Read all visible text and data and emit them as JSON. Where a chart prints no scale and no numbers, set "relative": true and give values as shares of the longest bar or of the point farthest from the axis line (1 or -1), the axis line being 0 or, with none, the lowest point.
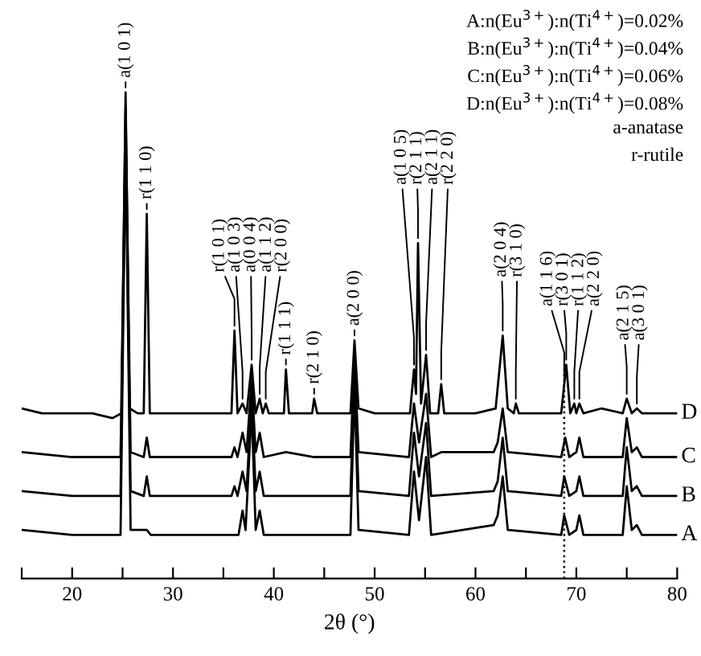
{
  "chart_data": {
    "type": "line",
    "relative": true,
    "xlabel": "2θ (°)",
    "xlim": [
      15,
      80
    ],
    "xticks": [
      {
        "value": 15,
        "label": null
      },
      20,
      {
        "value": 25,
        "label": null
      },
      30,
      {
        "value": 35,
        "label": null
      },
      40,
      {
        "value": 45,
        "label": null
      },
      50,
      {
        "value": 55,
        "label": null
      },
      60,
      {
        "value": 65,
        "label": null
      },
      70,
      {
        "value": 75,
        "label": null
      },
      80
    ],
    "tick_labels": "x",
    "grid": false,
    "legend": false,
    "series": [
      {
        "name": "D",
        "color": "#000000",
        "x": [
          15,
          17,
          20,
          22,
          24,
          24.9,
          25.3,
          25.7,
          26.5,
          27.1,
          27.4,
          27.7,
          30,
          33,
          35.8,
          36.1,
          36.4,
          36.9,
          37.3,
          37.8,
          38.2,
          38.6,
          38.9,
          39.2,
          39.5,
          41.0,
          41.2,
          41.5,
          43.8,
          44.0,
          44.3,
          47.6,
          48.0,
          48.4,
          50,
          53.5,
          53.9,
          54.1,
          54.3,
          54.6,
          55.1,
          55.5,
          56.3,
          56.6,
          56.9,
          60,
          62.0,
          62.7,
          63.2,
          63.8,
          64.0,
          64.3,
          68.5,
          68.8,
          69.0,
          69.4,
          69.8,
          70.0,
          70.3,
          70.7,
          72.5,
          74.6,
          75.0,
          75.5,
          76.0,
          76.5,
          80
        ],
        "values": [
          0.35,
          0.34,
          0.34,
          0.34,
          0.33,
          0.34,
          1.0,
          0.35,
          0.34,
          0.34,
          0.75,
          0.34,
          0.34,
          0.34,
          0.34,
          0.51,
          0.34,
          0.36,
          0.34,
          0.44,
          0.34,
          0.37,
          0.34,
          0.36,
          0.34,
          0.34,
          0.43,
          0.34,
          0.34,
          0.37,
          0.34,
          0.34,
          0.49,
          0.35,
          0.34,
          0.34,
          0.43,
          0.38,
          0.69,
          0.36,
          0.46,
          0.34,
          0.34,
          0.4,
          0.34,
          0.34,
          0.35,
          0.5,
          0.35,
          0.34,
          0.36,
          0.34,
          0.34,
          0.4,
          0.44,
          0.34,
          0.36,
          0.34,
          0.36,
          0.34,
          0.35,
          0.34,
          0.37,
          0.34,
          0.35,
          0.34,
          0.34
        ]
      },
      {
        "name": "C",
        "color": "#000000",
        "x": [
          15,
          20,
          24.8,
          25.3,
          25.8,
          27.1,
          27.4,
          27.7,
          33,
          35.8,
          36.1,
          36.4,
          36.9,
          37.3,
          37.8,
          38.2,
          38.6,
          39.0,
          41.2,
          44,
          47.6,
          48.0,
          48.4,
          53.4,
          53.9,
          54.4,
          55.1,
          55.6,
          56.6,
          61.8,
          62.2,
          62.7,
          63.2,
          68.5,
          68.9,
          69.3,
          70.0,
          70.3,
          70.7,
          74.6,
          75.0,
          75.5,
          76.0,
          76.5,
          80
        ],
        "values": [
          0.26,
          0.25,
          0.25,
          0.97,
          0.26,
          0.25,
          0.29,
          0.25,
          0.25,
          0.25,
          0.27,
          0.25,
          0.3,
          0.26,
          0.41,
          0.26,
          0.3,
          0.25,
          0.26,
          0.25,
          0.25,
          0.46,
          0.26,
          0.25,
          0.36,
          0.28,
          0.38,
          0.25,
          0.26,
          0.26,
          0.28,
          0.35,
          0.26,
          0.25,
          0.29,
          0.25,
          0.26,
          0.29,
          0.25,
          0.25,
          0.33,
          0.26,
          0.27,
          0.25,
          0.25
        ]
      },
      {
        "name": "B",
        "color": "#000000",
        "x": [
          15,
          20,
          24.8,
          25.3,
          25.8,
          27.1,
          27.4,
          27.7,
          35.8,
          36.1,
          36.4,
          36.9,
          37.3,
          37.8,
          38.2,
          38.6,
          39.0,
          47.6,
          48.0,
          48.4,
          53.4,
          53.9,
          54.4,
          55.1,
          55.6,
          61.8,
          62.2,
          62.7,
          63.2,
          68.5,
          68.8,
          69.3,
          70.0,
          70.3,
          70.7,
          74.6,
          75.0,
          75.5,
          76.0,
          76.5,
          80
        ],
        "values": [
          0.18,
          0.17,
          0.17,
          0.94,
          0.18,
          0.17,
          0.21,
          0.17,
          0.17,
          0.19,
          0.17,
          0.22,
          0.18,
          0.38,
          0.18,
          0.22,
          0.17,
          0.17,
          0.43,
          0.18,
          0.17,
          0.3,
          0.21,
          0.32,
          0.17,
          0.18,
          0.2,
          0.29,
          0.18,
          0.17,
          0.21,
          0.17,
          0.18,
          0.21,
          0.17,
          0.17,
          0.27,
          0.18,
          0.19,
          0.17,
          0.17
        ]
      },
      {
        "name": "A",
        "color": "#000000",
        "x": [
          15,
          20,
          24.8,
          25.3,
          25.8,
          27.4,
          27.8,
          36.5,
          36.9,
          37.2,
          37.8,
          38.2,
          38.6,
          39.0,
          47.6,
          48.0,
          48.4,
          53.4,
          53.9,
          54.4,
          55.1,
          55.6,
          61.8,
          62.2,
          62.7,
          63.2,
          68.5,
          68.8,
          69.3,
          70.0,
          70.3,
          70.7,
          74.6,
          75.0,
          75.5,
          76.0,
          76.5,
          80
        ],
        "values": [
          0.1,
          0.09,
          0.09,
          0.9,
          0.1,
          0.1,
          0.09,
          0.09,
          0.14,
          0.1,
          0.35,
          0.1,
          0.14,
          0.09,
          0.09,
          0.4,
          0.1,
          0.09,
          0.22,
          0.12,
          0.25,
          0.09,
          0.11,
          0.13,
          0.21,
          0.1,
          0.09,
          0.13,
          0.09,
          0.1,
          0.13,
          0.09,
          0.09,
          0.19,
          0.1,
          0.11,
          0.09,
          0.09
        ]
      }
    ],
    "ref_lines": [
      {
        "axis": "x",
        "value": 68.8,
        "line_style": "dotted",
        "color": "#000000"
      }
    ],
    "annotations": [
      {
        "text": "a(1 0 1)",
        "x": 25.3,
        "y": 1.0
      },
      {
        "text": "r(1 1 0)",
        "x": 27.4,
        "y": 0.75
      },
      {
        "text": "r(1 0 1)",
        "x": 36.1,
        "y": 0.51
      },
      {
        "text": "a(1 0 3)",
        "x": 36.9,
        "y": 0.36
      },
      {
        "text": "a(0 0 4)",
        "x": 37.8,
        "y": 0.44
      },
      {
        "text": "a(1 1 2)",
        "x": 38.6,
        "y": 0.37
      },
      {
        "text": "r(2 0 0)",
        "x": 39.2,
        "y": 0.36
      },
      {
        "text": "r(1 1 1)",
        "x": 41.2,
        "y": 0.43
      },
      {
        "text": "r(2 1 0)",
        "x": 44.0,
        "y": 0.37
      },
      {
        "text": "a(2 0 0)",
        "x": 48.0,
        "y": 0.49
      },
      {
        "text": "a(1 0 5)",
        "x": 53.9,
        "y": 0.43
      },
      {
        "text": "r(2 1 1)",
        "x": 54.3,
        "y": 0.69
      },
      {
        "text": "a(2 1 1)",
        "x": 55.1,
        "y": 0.46
      },
      {
        "text": "r(2 2 0)",
        "x": 56.6,
        "y": 0.4
      },
      {
        "text": "a(2 0 4)",
        "x": 62.7,
        "y": 0.5
      },
      {
        "text": "r(3 1 0)",
        "x": 64.0,
        "y": 0.36
      },
      {
        "text": "a(1 1 6)",
        "x": 68.8,
        "y": 0.4
      },
      {
        "text": "r(3 0 1)",
        "x": 69.0,
        "y": 0.44
      },
      {
        "text": "r(1 1 2)",
        "x": 69.8,
        "y": 0.36
      },
      {
        "text": "a(2 2 0)",
        "x": 70.3,
        "y": 0.36
      },
      {
        "text": "a(2 1 5)",
        "x": 75.0,
        "y": 0.37
      },
      {
        "text": "a(3 0 1)",
        "x": 76.0,
        "y": 0.35
      },
      "A:n(Eu$^{3+}$):n(Ti$^{4+}$)=0.02%",
      "B:n(Eu$^{3+}$):n(Ti$^{4+}$)=0.04%",
      "C:n(Eu$^{3+}$):n(Ti$^{4+}$)=0.06%",
      "D:n(Eu$^{3+}$):n(Ti$^{4+}$)=0.08%",
      "a-anatase",
      "r-rutile"
    ]
  }
}
